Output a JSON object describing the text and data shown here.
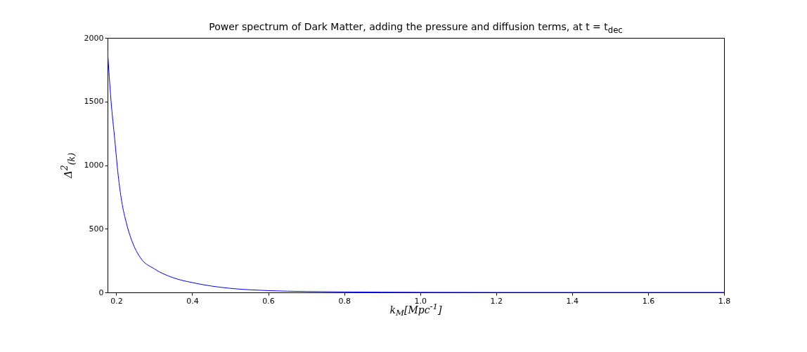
{
  "chart_data": {
    "type": "line",
    "title": "Power spectrum of Dark Matter, adding the pressure and diffusion terms, at t = t$_{dec}$",
    "xlabel": "k$_{M}$[Mpc$^{-1}$]",
    "ylabel": "Δ$^{2}$$_{(k)}$",
    "xlim": [
      0.177,
      1.8
    ],
    "ylim": [
      0,
      2000
    ],
    "xticks": [
      0.2,
      0.4,
      0.6,
      0.8,
      {
        "value": 1,
        "label": "1.0"
      },
      1.2,
      1.4,
      1.6,
      1.8
    ],
    "yticks": [
      0,
      500,
      1000,
      1500,
      2000
    ],
    "x": [
      0.177,
      0.186,
      0.196,
      0.205,
      0.214,
      0.227,
      0.245,
      0.264,
      0.3,
      0.35,
      0.4,
      0.45,
      0.5,
      0.6,
      0.7,
      0.8,
      0.9,
      1.0,
      1.2,
      1.4,
      1.6,
      1.8
    ],
    "series": [
      {
        "color": "#0000ff",
        "values": [
          1900,
          1510,
          1200,
          920,
          720,
          540,
          375,
          270,
          185,
          115,
          77,
          50,
          32,
          14,
          7,
          4,
          2,
          1,
          0,
          0,
          0,
          0
        ]
      }
    ]
  }
}
